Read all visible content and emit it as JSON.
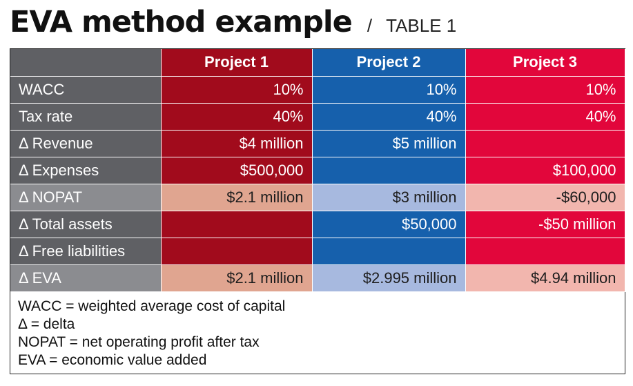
{
  "title": {
    "main": "EVA method example",
    "separator": "/",
    "sub": "TABLE 1"
  },
  "table": {
    "headers": [
      "",
      "Project 1",
      "Project 2",
      "Project 3"
    ],
    "rows": [
      {
        "label": "WACC",
        "values": [
          "10%",
          "10%",
          "10%"
        ],
        "shade": "dark"
      },
      {
        "label": "Tax rate",
        "values": [
          "40%",
          "40%",
          "40%"
        ],
        "shade": "dark"
      },
      {
        "label": "Δ Revenue",
        "values": [
          "$4 million",
          "$5 million",
          ""
        ],
        "shade": "dark"
      },
      {
        "label": "Δ Expenses",
        "values": [
          "$500,000",
          "",
          "$100,000"
        ],
        "shade": "dark"
      },
      {
        "label": "Δ NOPAT",
        "values": [
          "$2.1 million",
          "$3 million",
          "-$60,000"
        ],
        "shade": "light"
      },
      {
        "label": "Δ Total assets",
        "values": [
          "",
          "$50,000",
          "-$50 million"
        ],
        "shade": "dark"
      },
      {
        "label": "Δ Free liabilities",
        "values": [
          "",
          "",
          ""
        ],
        "shade": "dark"
      },
      {
        "label": "Δ EVA",
        "values": [
          "$2.1 million",
          "$2.995 million",
          "$4.94 million"
        ],
        "shade": "light"
      }
    ]
  },
  "notes": [
    "WACC = weighted average cost of capital",
    "Δ = delta",
    "NOPAT = net operating profit after tax",
    "EVA = economic value added"
  ],
  "colors": {
    "project1": "#a10b1c",
    "project2": "#1660ac",
    "project3": "#e2063b",
    "label_dark": "#5f6064",
    "label_light": "#8b8c90"
  }
}
